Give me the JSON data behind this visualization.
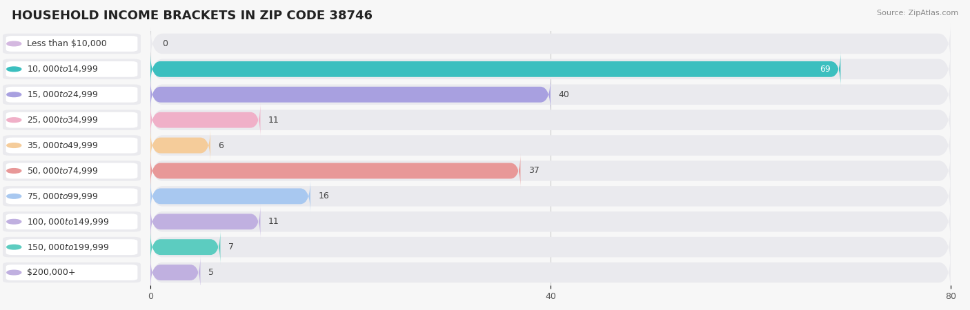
{
  "title": "HOUSEHOLD INCOME BRACKETS IN ZIP CODE 38746",
  "source": "Source: ZipAtlas.com",
  "categories": [
    "Less than $10,000",
    "$10,000 to $14,999",
    "$15,000 to $24,999",
    "$25,000 to $34,999",
    "$35,000 to $49,999",
    "$50,000 to $74,999",
    "$75,000 to $99,999",
    "$100,000 to $149,999",
    "$150,000 to $199,999",
    "$200,000+"
  ],
  "values": [
    0,
    69,
    40,
    11,
    6,
    37,
    16,
    11,
    7,
    5
  ],
  "bar_colors": [
    "#d4b8e0",
    "#3bbfbf",
    "#a8a0e0",
    "#f0b0c8",
    "#f5cc9a",
    "#e89898",
    "#a8c8f0",
    "#c0b0e0",
    "#5cccc0",
    "#c0b0e0"
  ],
  "background_color": "#f7f7f7",
  "bar_background_color": "#eaeaee",
  "row_bg_color": "#eaeaee",
  "xlim_max": 80,
  "xticks": [
    0,
    40,
    80
  ],
  "title_fontsize": 13,
  "label_fontsize": 9,
  "value_fontsize": 9,
  "axis_tick_fontsize": 9
}
